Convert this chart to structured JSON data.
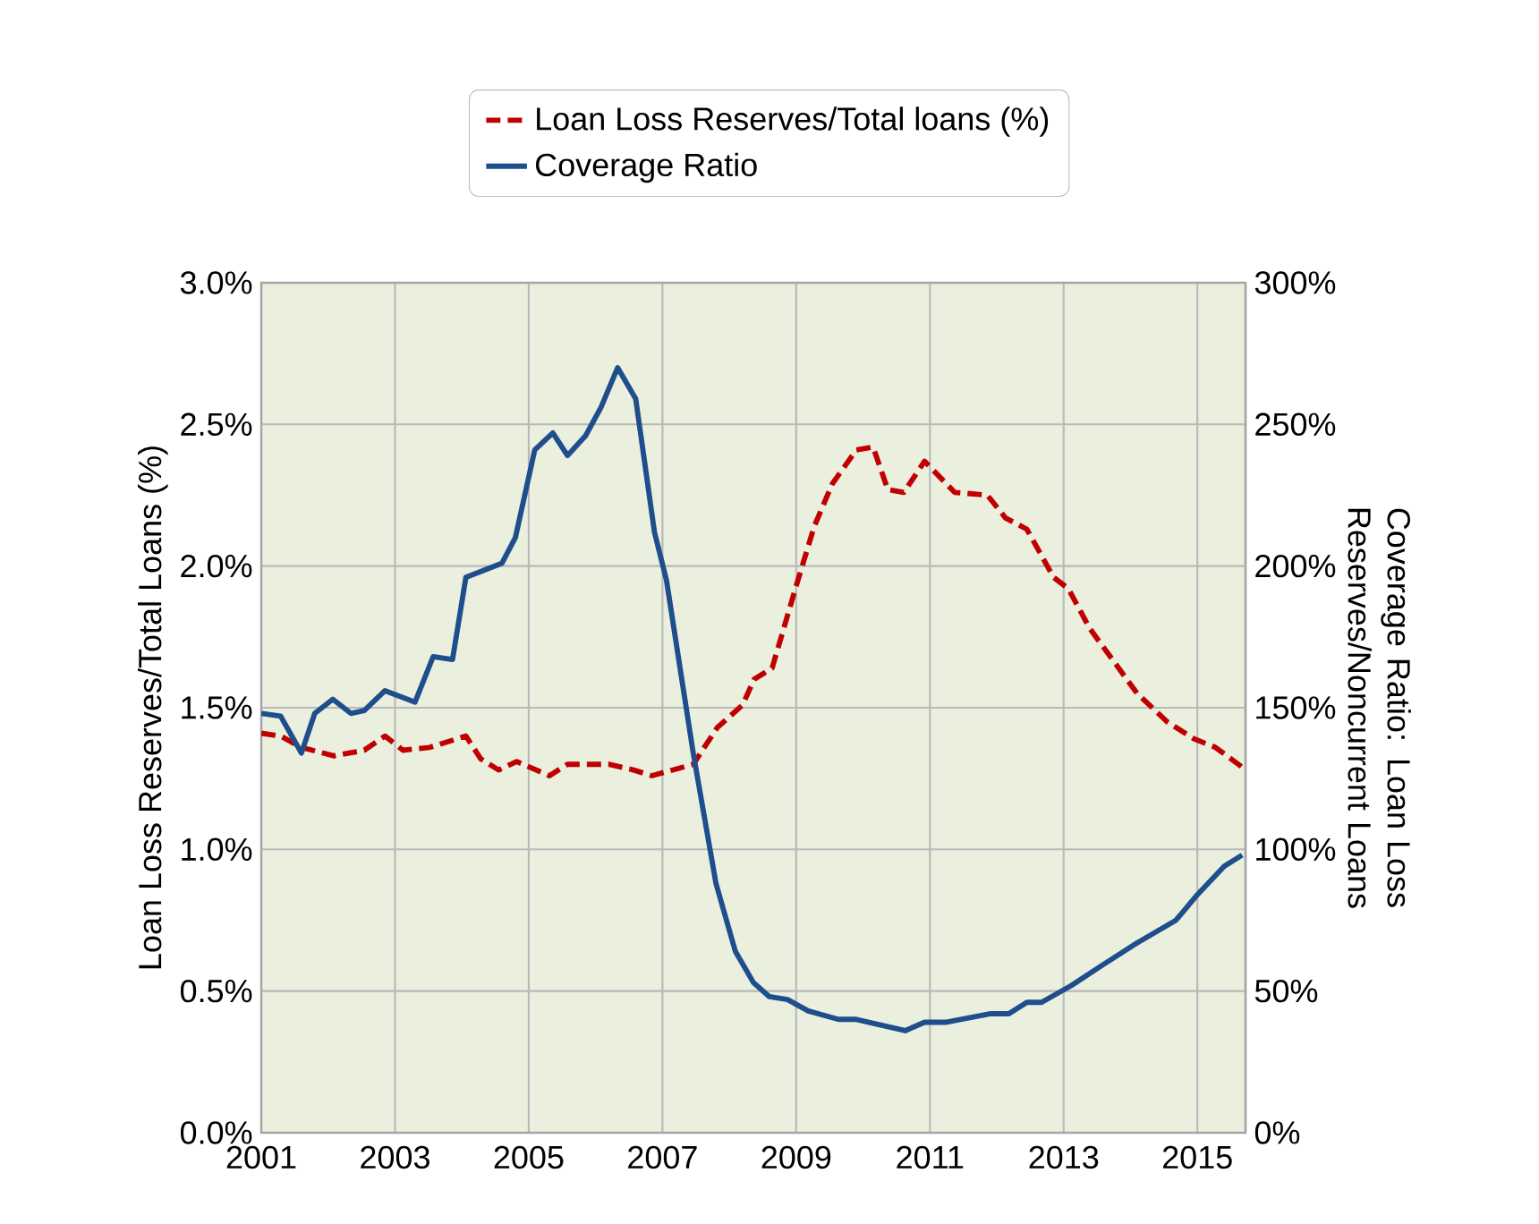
{
  "chart_data": {
    "type": "line",
    "ylabel": "Loan Loss Reserves/Total Loans (%)",
    "y2label": "Coverage Ratio: Loan Loss Reserves/Noncurrent Loans",
    "xlim": [
      2001,
      2015.72
    ],
    "xticks": [
      2001,
      2003,
      2005,
      2007,
      2009,
      2011,
      2013,
      2015
    ],
    "ylim": [
      0,
      3
    ],
    "yticks": [
      {
        "value": 0,
        "label": "0.0%"
      },
      {
        "value": 0.5,
        "label": "0.5%"
      },
      {
        "value": 1,
        "label": "1.0%"
      },
      {
        "value": 1.5,
        "label": "1.5%"
      },
      {
        "value": 2,
        "label": "2.0%"
      },
      {
        "value": 2.5,
        "label": "2.5%"
      },
      {
        "value": 3,
        "label": "3.0%"
      }
    ],
    "y2lim": [
      0,
      300
    ],
    "y2ticks": [
      {
        "value": 0,
        "label": "0%"
      },
      {
        "value": 50,
        "label": "50%"
      },
      {
        "value": 100,
        "label": "100%"
      },
      {
        "value": 150,
        "label": "150%"
      },
      {
        "value": 200,
        "label": "200%"
      },
      {
        "value": 250,
        "label": "250%"
      },
      {
        "value": 300,
        "label": "300%"
      }
    ],
    "grid": true,
    "legend": "top",
    "series": [
      {
        "name": "Loan Loss Reserves/Total loans (%)",
        "color": "#c00000",
        "axis": "y",
        "line_style": "dashed",
        "x": [
          2001.0,
          2001.29,
          2001.6,
          2002.09,
          2002.54,
          2002.85,
          2003.12,
          2003.52,
          2004.06,
          2004.28,
          2004.55,
          2004.82,
          2005.31,
          2005.58,
          2006.21,
          2006.57,
          2006.84,
          2007.46,
          2007.82,
          2008.2,
          2008.37,
          2008.64,
          2009.0,
          2009.27,
          2009.54,
          2009.9,
          2010.15,
          2010.37,
          2010.61,
          2010.92,
          2011.37,
          2011.86,
          2012.13,
          2012.45,
          2012.85,
          2013.07,
          2013.39,
          2014.1,
          2014.55,
          2014.95,
          2015.27,
          2015.67
        ],
        "values": [
          1.41,
          1.4,
          1.36,
          1.33,
          1.35,
          1.4,
          1.35,
          1.36,
          1.4,
          1.32,
          1.28,
          1.31,
          1.26,
          1.3,
          1.3,
          1.28,
          1.26,
          1.3,
          1.43,
          1.51,
          1.6,
          1.64,
          1.93,
          2.14,
          2.29,
          2.41,
          2.42,
          2.27,
          2.26,
          2.37,
          2.26,
          2.25,
          2.17,
          2.13,
          1.96,
          1.92,
          1.78,
          1.55,
          1.45,
          1.39,
          1.36,
          1.29
        ]
      },
      {
        "name": "Coverage Ratio",
        "color": "#1f4e8c",
        "axis": "y2",
        "line_style": "solid",
        "x": [
          2001.0,
          2001.29,
          2001.6,
          2001.8,
          2002.07,
          2002.34,
          2002.54,
          2002.85,
          2003.3,
          2003.57,
          2003.86,
          2004.06,
          2004.6,
          2004.8,
          2005.09,
          2005.36,
          2005.58,
          2005.85,
          2006.08,
          2006.33,
          2006.6,
          2006.88,
          2007.06,
          2007.46,
          2007.8,
          2008.09,
          2008.36,
          2008.6,
          2008.87,
          2009.18,
          2009.63,
          2009.9,
          2010.63,
          2010.92,
          2011.25,
          2011.91,
          2012.18,
          2012.45,
          2012.67,
          2013.12,
          2013.57,
          2014.1,
          2014.68,
          2015.0,
          2015.4,
          2015.67
        ],
        "values": [
          148,
          147,
          134,
          148,
          153,
          148,
          149,
          156,
          152,
          168,
          167,
          196,
          201,
          210,
          241,
          247,
          239,
          246,
          256,
          270,
          259,
          212,
          195,
          134,
          88,
          64,
          53,
          48,
          47,
          43,
          40,
          40,
          36,
          39,
          39,
          42,
          42,
          46,
          46,
          52,
          59,
          67,
          75,
          84,
          94,
          98
        ]
      }
    ]
  }
}
